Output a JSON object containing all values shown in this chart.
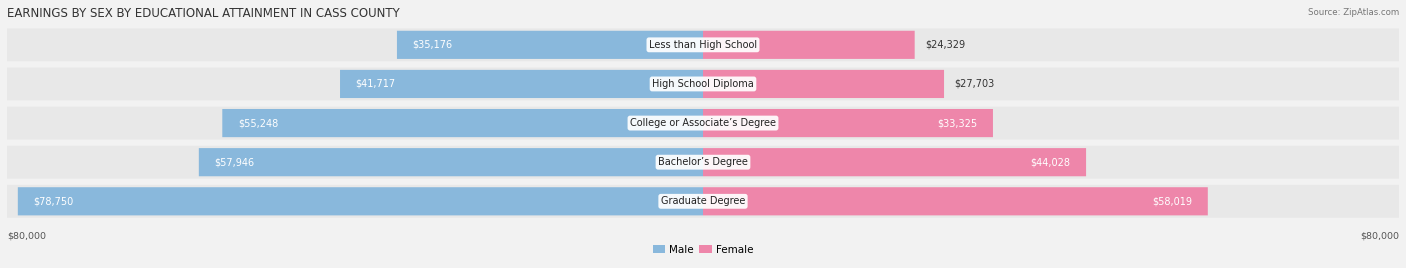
{
  "title": "EARNINGS BY SEX BY EDUCATIONAL ATTAINMENT IN CASS COUNTY",
  "source": "Source: ZipAtlas.com",
  "categories": [
    "Less than High School",
    "High School Diploma",
    "College or Associate’s Degree",
    "Bachelor’s Degree",
    "Graduate Degree"
  ],
  "male_values": [
    35176,
    41717,
    55248,
    57946,
    78750
  ],
  "female_values": [
    24329,
    27703,
    33325,
    44028,
    58019
  ],
  "male_color": "#89b8dc",
  "female_color": "#ee86aa",
  "max_value": 80000,
  "bg_row_light": "#ebebeb",
  "bg_row_dark": "#e0e0e0",
  "background_color": "#f2f2f2",
  "title_fontsize": 8.5,
  "val_fontsize": 7.0,
  "cat_fontsize": 7.0,
  "axis_label": "$80,000",
  "legend_male": "Male",
  "legend_female": "Female"
}
